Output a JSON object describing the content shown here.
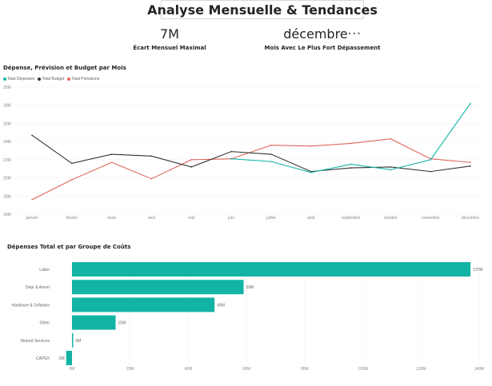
{
  "page": {
    "title": "Analyse Mensuelle & Tendances"
  },
  "kpis": [
    {
      "value": "7M",
      "label": "Écart Mensuel Maximal"
    },
    {
      "value": "décembre",
      "label": "Mois Avec Le Plus Fort Dépassement",
      "more": "•••"
    }
  ],
  "line_chart_title": "Dépense, Prévision et Budget par Mois",
  "bar_chart_title": "Dépenses Total et par Groupe de Coûts",
  "colors": {
    "depenses": "#13b3a5",
    "budget": "#333333",
    "previsions": "#e0675b",
    "bar": "#13b3a5",
    "grid": "#e6e6e6"
  },
  "chart_data": [
    {
      "type": "line",
      "title": "Dépense, Prévision et Budget par Mois",
      "legend": [
        "Total Dépenses",
        "Total Budget",
        "Total Prévisions"
      ],
      "categories": [
        "janvier",
        "février",
        "mars",
        "avril",
        "mai",
        "juin",
        "juillet",
        "août",
        "septembre",
        "octobre",
        "novembre",
        "décembre"
      ],
      "yticks": [
        "16M",
        "18M",
        "20M",
        "22M",
        "24M",
        "26M",
        "28M",
        "30M"
      ],
      "ylim": [
        16,
        30
      ],
      "series": [
        {
          "name": "Total Dépenses",
          "values": [
            null,
            null,
            null,
            null,
            null,
            22.1,
            21.8,
            20.6,
            21.5,
            20.9,
            22.0,
            28.2
          ]
        },
        {
          "name": "Total Budget",
          "values": [
            24.7,
            21.6,
            22.6,
            22.4,
            21.2,
            22.9,
            22.6,
            20.7,
            21.1,
            21.2,
            20.7,
            21.3
          ]
        },
        {
          "name": "Total Prévisions",
          "values": [
            17.6,
            19.8,
            21.7,
            19.9,
            22.0,
            22.1,
            23.6,
            23.5,
            23.8,
            24.3,
            22.1,
            21.7
          ]
        }
      ]
    },
    {
      "type": "bar",
      "orientation": "horizontal",
      "title": "Dépenses Total et par Groupe de Coûts",
      "categories": [
        "Labor",
        "Depr & Amort",
        "Hardware & Software",
        "Other",
        "Shared Services",
        "CAPEX"
      ],
      "values": [
        137,
        59,
        49,
        15,
        0,
        -2
      ],
      "value_labels": [
        "137M",
        "59M",
        "49M",
        "15M",
        "0M",
        "-2M"
      ],
      "xticks": [
        "0M",
        "20M",
        "40M",
        "60M",
        "80M",
        "100M",
        "120M",
        "140M"
      ],
      "xlim": [
        0,
        140
      ]
    }
  ]
}
